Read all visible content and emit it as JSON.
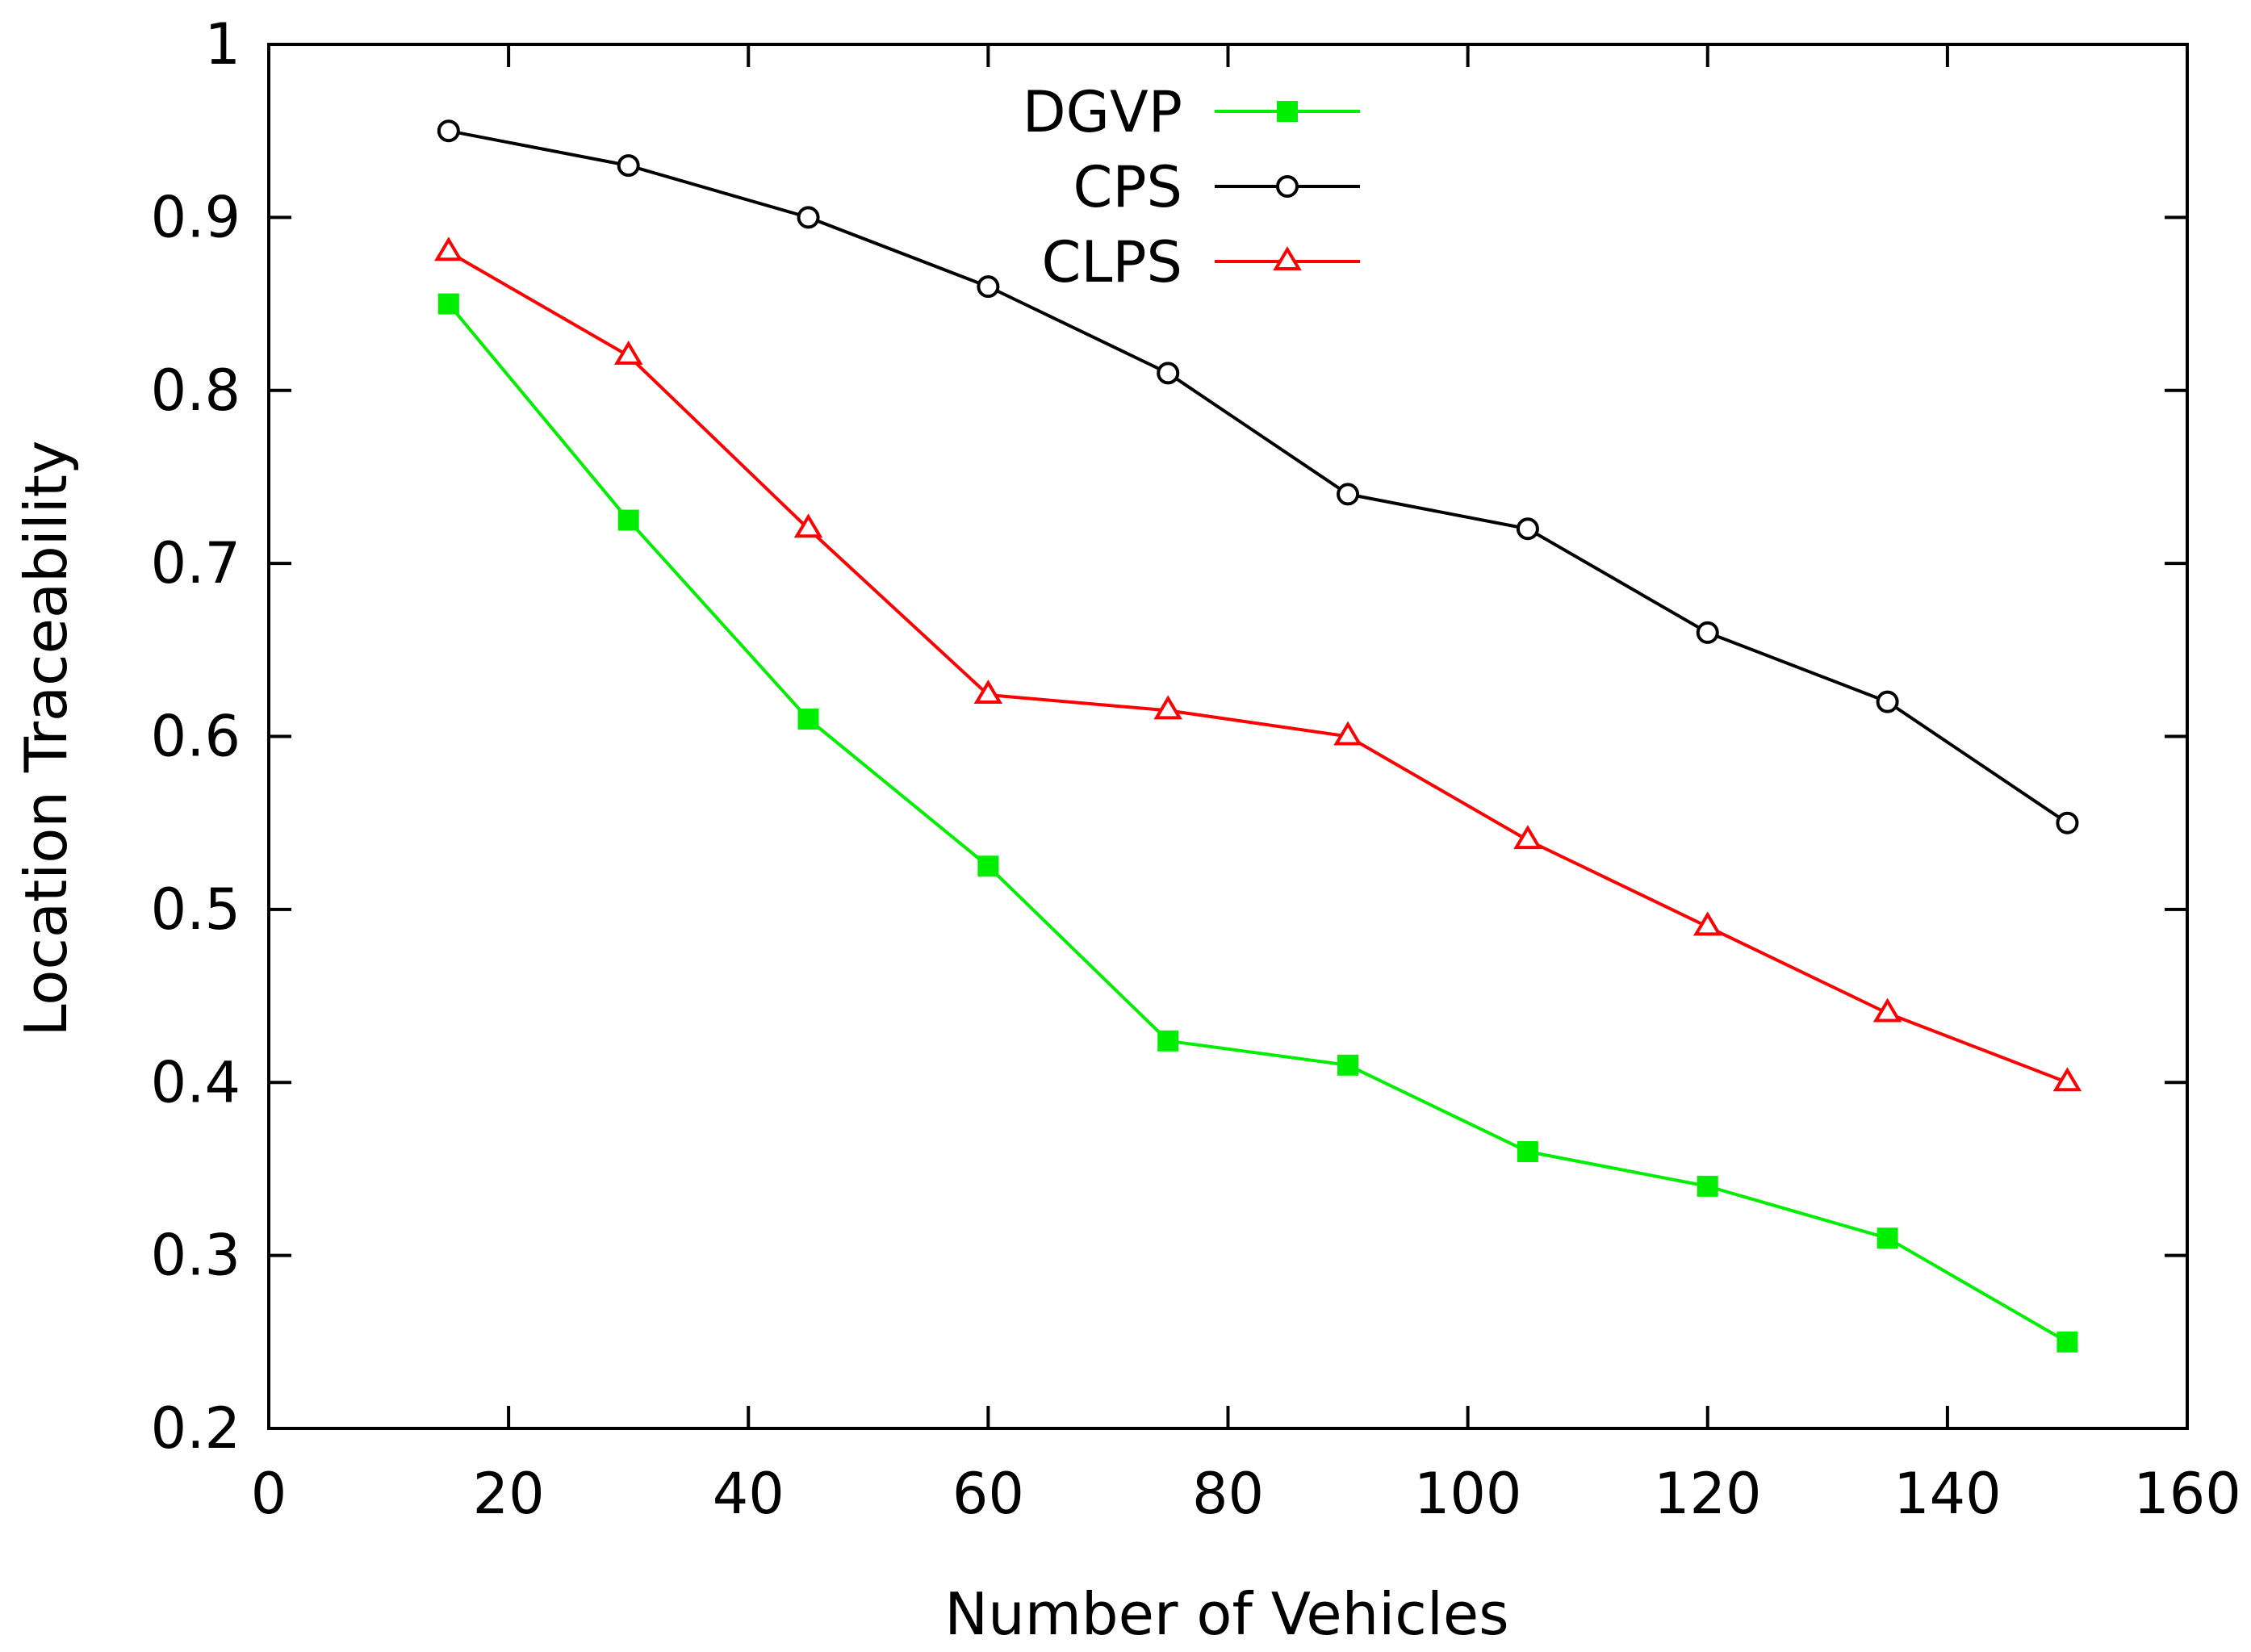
{
  "chart_data": {
    "type": "line",
    "title": "",
    "xlabel": "Number of Vehicles",
    "ylabel": "Location Traceability",
    "xlim": [
      0,
      160
    ],
    "ylim": [
      0.2,
      1.0
    ],
    "x_ticks": [
      "0",
      "20",
      "40",
      "60",
      "80",
      "100",
      "120",
      "140",
      "160"
    ],
    "y_ticks": [
      "0.2",
      "0.3",
      "0.4",
      "0.5",
      "0.6",
      "0.7",
      "0.8",
      "0.9",
      "1"
    ],
    "x_tick_values": [
      0,
      20,
      40,
      60,
      80,
      100,
      120,
      140,
      160
    ],
    "y_tick_values": [
      0.2,
      0.3,
      0.4,
      0.5,
      0.6,
      0.7,
      0.8,
      0.9,
      1.0
    ],
    "x": [
      15,
      30,
      45,
      60,
      75,
      90,
      105,
      120,
      135,
      150
    ],
    "grid": false,
    "legend_position": "top-center",
    "series": [
      {
        "name": "DGVP",
        "color": "#00ee00",
        "marker": "filled-square",
        "values": [
          0.85,
          0.725,
          0.61,
          0.525,
          0.424,
          0.41,
          0.36,
          0.34,
          0.31,
          0.25
        ]
      },
      {
        "name": "CPS",
        "color": "#000000",
        "marker": "open-circle",
        "values": [
          0.95,
          0.93,
          0.9,
          0.86,
          0.81,
          0.74,
          0.72,
          0.66,
          0.62,
          0.55
        ]
      },
      {
        "name": "CLPS",
        "color": "#ff0000",
        "marker": "open-triangle",
        "values": [
          0.88,
          0.82,
          0.72,
          0.624,
          0.615,
          0.6,
          0.54,
          0.49,
          0.44,
          0.4
        ]
      }
    ]
  }
}
